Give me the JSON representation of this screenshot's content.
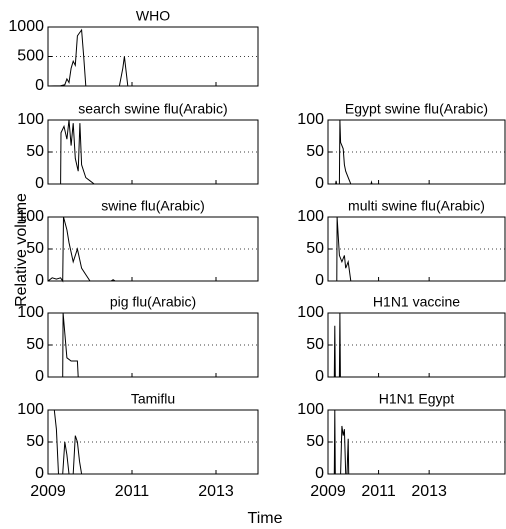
{
  "figure": {
    "ylabel": "Relative volume",
    "xlabel": "Time"
  },
  "chart_data": [
    {
      "type": "line",
      "title": "WHO",
      "xlim": [
        2009,
        2014
      ],
      "ylim": [
        0,
        1000
      ],
      "yticks": [
        0,
        500,
        1000
      ],
      "grid": true,
      "color": "#000000",
      "x": [
        2009,
        2009.3,
        2009.4,
        2009.45,
        2009.5,
        2009.55,
        2009.6,
        2009.65,
        2009.7,
        2009.75,
        2009.8,
        2009.85,
        2009.9,
        2010.7,
        2010.78,
        2010.82,
        2010.86,
        2010.9,
        2014
      ],
      "values": [
        0,
        5,
        20,
        120,
        60,
        300,
        420,
        350,
        850,
        900,
        950,
        500,
        0,
        0,
        300,
        500,
        250,
        0,
        0
      ]
    },
    {
      "type": "line",
      "title": "search swine flu(Arabic)",
      "xlim": [
        2009,
        2014
      ],
      "ylim": [
        0,
        100
      ],
      "yticks": [
        0,
        50,
        100
      ],
      "grid": true,
      "color": "#000000",
      "x": [
        2009.3,
        2009.31,
        2009.38,
        2009.45,
        2009.5,
        2009.55,
        2009.6,
        2009.65,
        2009.72,
        2009.76,
        2009.8,
        2009.9,
        2010.0,
        2010.1
      ],
      "values": [
        0,
        80,
        90,
        70,
        100,
        60,
        95,
        40,
        20,
        95,
        30,
        10,
        5,
        0
      ]
    },
    {
      "type": "line",
      "title": "Egypt swine flu(Arabic)",
      "xlim": [
        2009,
        2016
      ],
      "ylim": [
        0,
        100
      ],
      "yticks": [
        0,
        50,
        100
      ],
      "grid": true,
      "color": "#000000",
      "x": [
        2009,
        2009.3,
        2009.32,
        2009.34,
        2009.45,
        2009.47,
        2009.5,
        2009.55,
        2009.6,
        2009.65,
        2009.7,
        2009.8,
        2009.9,
        2010.7,
        2010.72,
        2010.74,
        2016
      ],
      "values": [
        0,
        0,
        5,
        0,
        0,
        100,
        65,
        60,
        55,
        30,
        20,
        10,
        0,
        0,
        3,
        0,
        0
      ]
    },
    {
      "type": "line",
      "title": "swine flu(Arabic)",
      "xlim": [
        2009,
        2014
      ],
      "ylim": [
        0,
        100
      ],
      "yticks": [
        0,
        50,
        100
      ],
      "grid": true,
      "color": "#000000",
      "x": [
        2009,
        2009.1,
        2009.2,
        2009.3,
        2009.35,
        2009.37,
        2009.45,
        2009.5,
        2009.6,
        2009.7,
        2009.8,
        2009.9,
        2010.0,
        2010.5,
        2010.55,
        2010.6,
        2014
      ],
      "values": [
        0,
        5,
        3,
        5,
        0,
        100,
        80,
        60,
        30,
        50,
        20,
        10,
        0,
        0,
        2,
        0,
        0
      ]
    },
    {
      "type": "line",
      "title": "multi swine flu(Arabic)",
      "xlim": [
        2009,
        2016
      ],
      "ylim": [
        0,
        100
      ],
      "yticks": [
        0,
        50,
        100
      ],
      "grid": true,
      "color": "#000000",
      "x": [
        2009.35,
        2009.36,
        2009.45,
        2009.55,
        2009.65,
        2009.7,
        2009.8,
        2009.9
      ],
      "values": [
        0,
        100,
        40,
        30,
        40,
        20,
        30,
        0
      ]
    },
    {
      "type": "line",
      "title": "pig flu(Arabic)",
      "xlim": [
        2009,
        2014
      ],
      "ylim": [
        0,
        100
      ],
      "yticks": [
        0,
        50,
        100
      ],
      "grid": true,
      "color": "#000000",
      "x": [
        2009.35,
        2009.36,
        2009.45,
        2009.55,
        2009.7,
        2009.72
      ],
      "values": [
        0,
        100,
        30,
        25,
        25,
        0
      ]
    },
    {
      "type": "line",
      "title": "H1N1 vaccine",
      "xlim": [
        2009,
        2016
      ],
      "ylim": [
        0,
        100
      ],
      "yticks": [
        0,
        50,
        100
      ],
      "grid": true,
      "color": "#000000",
      "x": [
        2009.25,
        2009.27,
        2009.29,
        2009.45,
        2009.47,
        2009.49
      ],
      "values": [
        0,
        80,
        0,
        0,
        100,
        0
      ]
    },
    {
      "type": "line",
      "title": "Tamiflu",
      "xlim": [
        2009,
        2014
      ],
      "ylim": [
        0,
        100
      ],
      "yticks": [
        0,
        50,
        100
      ],
      "grid": true,
      "color": "#000000",
      "x": [
        2009,
        2009.15,
        2009.2,
        2009.25,
        2009.35,
        2009.4,
        2009.45,
        2009.5,
        2009.6,
        2009.65,
        2009.7,
        2009.75,
        2009.8
      ],
      "values": [
        100,
        100,
        70,
        0,
        0,
        50,
        30,
        0,
        0,
        60,
        50,
        20,
        0
      ]
    },
    {
      "type": "line",
      "title": "H1N1 Egypt",
      "xlim": [
        2009,
        2016
      ],
      "ylim": [
        0,
        100
      ],
      "yticks": [
        0,
        50,
        100
      ],
      "grid": true,
      "color": "#000000",
      "x": [
        2009.25,
        2009.27,
        2009.29,
        2009.5,
        2009.55,
        2009.6,
        2009.65,
        2009.7,
        2009.75,
        2009.8,
        2009.82
      ],
      "values": [
        0,
        100,
        0,
        0,
        75,
        60,
        70,
        0,
        0,
        55,
        0
      ]
    }
  ],
  "xticks_bottom": [
    2009,
    2011,
    2013
  ]
}
